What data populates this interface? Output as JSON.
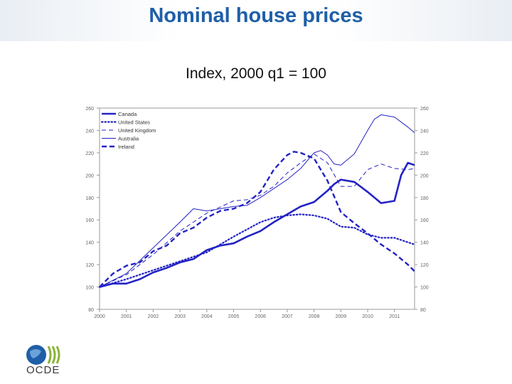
{
  "slide": {
    "title": "Nominal house prices",
    "subtitle": "Index, 2000 q1 = 100",
    "logo_text": "OCDE"
  },
  "colors": {
    "title": "#1f5fa8",
    "series": "#2323c4",
    "axis": "#999999",
    "tick_text": "#666666"
  },
  "chart_data": {
    "type": "line",
    "title": "Nominal house prices",
    "subtitle": "Index, 2000 q1 = 100",
    "xlabel": "",
    "ylabel": "",
    "xlim": [
      2000.0,
      2011.75
    ],
    "ylim": [
      80,
      260
    ],
    "yticks": [
      80,
      100,
      120,
      140,
      160,
      180,
      200,
      220,
      240,
      260
    ],
    "xticks": [
      "2000",
      "2001",
      "2002",
      "2003",
      "2004",
      "2005",
      "2006",
      "2007",
      "2008",
      "2009",
      "2010",
      "2011"
    ],
    "legend_position": "top-left",
    "series": [
      {
        "name": "Canada",
        "style": "solid-thick",
        "x": [
          2000.0,
          2000.5,
          2001.0,
          2001.5,
          2002.0,
          2002.5,
          2003.0,
          2003.5,
          2004.0,
          2004.5,
          2005.0,
          2005.5,
          2006.0,
          2006.5,
          2007.0,
          2007.5,
          2008.0,
          2008.5,
          2008.75,
          2009.0,
          2009.5,
          2010.0,
          2010.5,
          2011.0,
          2011.25,
          2011.5,
          2011.75
        ],
        "y": [
          100,
          103,
          103,
          107,
          113,
          117,
          122,
          125,
          133,
          137,
          139,
          145,
          150,
          158,
          165,
          172,
          176,
          186,
          192,
          196,
          194,
          185,
          175,
          177,
          200,
          211,
          209
        ]
      },
      {
        "name": "United States",
        "style": "dotted",
        "x": [
          2000.0,
          2001.0,
          2002.0,
          2003.0,
          2004.0,
          2005.0,
          2006.0,
          2006.5,
          2007.0,
          2007.5,
          2008.0,
          2008.5,
          2009.0,
          2009.5,
          2010.0,
          2010.5,
          2011.0,
          2011.5,
          2011.75
        ],
        "y": [
          100,
          107,
          115,
          123,
          131,
          145,
          158,
          162,
          164,
          165,
          164,
          161,
          154,
          153,
          147,
          144,
          144,
          140,
          138
        ]
      },
      {
        "name": "United Kingdom",
        "style": "dashed-thin",
        "x": [
          2000.0,
          2001.0,
          2002.0,
          2003.0,
          2004.0,
          2005.0,
          2005.5,
          2006.0,
          2006.5,
          2007.0,
          2007.5,
          2008.0,
          2008.5,
          2009.0,
          2009.5,
          2010.0,
          2010.5,
          2011.0,
          2011.5,
          2011.75
        ],
        "y": [
          100,
          111,
          129,
          150,
          166,
          177,
          178,
          182,
          190,
          202,
          211,
          219,
          211,
          190,
          190,
          205,
          210,
          206,
          205,
          206
        ]
      },
      {
        "name": "Australia",
        "style": "solid-thin",
        "x": [
          2000.0,
          2001.0,
          2002.0,
          2003.0,
          2003.5,
          2004.0,
          2004.5,
          2005.0,
          2005.5,
          2006.0,
          2006.5,
          2007.0,
          2007.5,
          2008.0,
          2008.25,
          2008.5,
          2008.75,
          2009.0,
          2009.5,
          2010.0,
          2010.25,
          2010.5,
          2011.0,
          2011.5,
          2011.75
        ],
        "y": [
          100,
          112,
          135,
          158,
          170,
          168,
          170,
          172,
          173,
          180,
          188,
          196,
          206,
          220,
          222,
          218,
          210,
          209,
          219,
          240,
          250,
          254,
          252,
          243,
          238
        ]
      },
      {
        "name": "Ireland",
        "style": "dashed-thick",
        "x": [
          2000.0,
          2000.5,
          2001.0,
          2001.5,
          2002.0,
          2002.5,
          2003.0,
          2003.5,
          2004.0,
          2004.5,
          2005.0,
          2005.5,
          2006.0,
          2006.5,
          2007.0,
          2007.25,
          2007.5,
          2008.0,
          2008.5,
          2009.0,
          2009.5,
          2010.0,
          2010.5,
          2011.0,
          2011.5,
          2011.75
        ],
        "y": [
          100,
          112,
          119,
          122,
          132,
          137,
          148,
          153,
          162,
          168,
          170,
          175,
          185,
          205,
          218,
          221,
          220,
          215,
          195,
          167,
          157,
          148,
          138,
          130,
          120,
          114
        ]
      }
    ]
  }
}
